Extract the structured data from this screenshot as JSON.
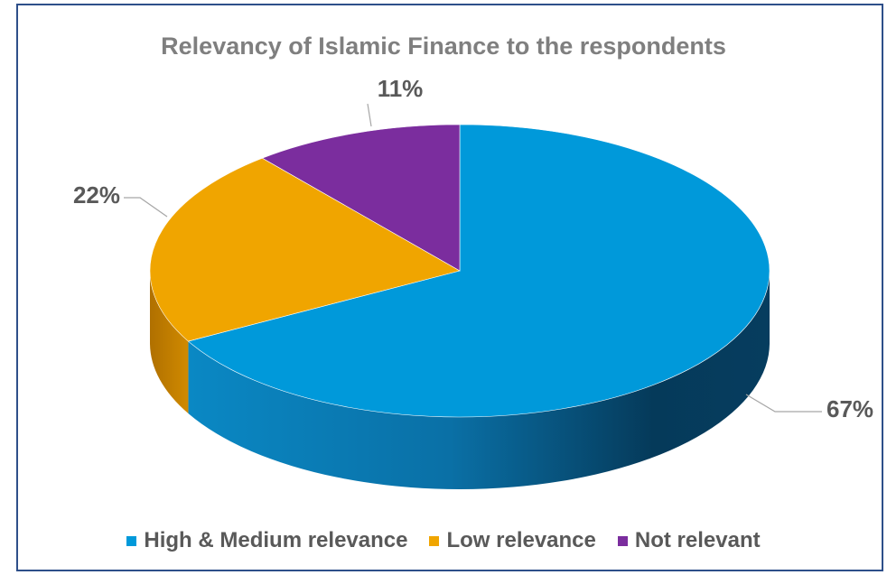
{
  "chart_data": {
    "type": "pie",
    "title": "Relevancy of Islamic Finance to the respondents",
    "categories": [
      "High & Medium relevance",
      "Low relevance",
      "Not relevant"
    ],
    "values": [
      67,
      22,
      11
    ],
    "labels": [
      "67%",
      "22%",
      "11%"
    ],
    "colors": [
      "#0099da",
      "#f0a500",
      "#7b2d9e"
    ],
    "legend_position": "bottom"
  }
}
